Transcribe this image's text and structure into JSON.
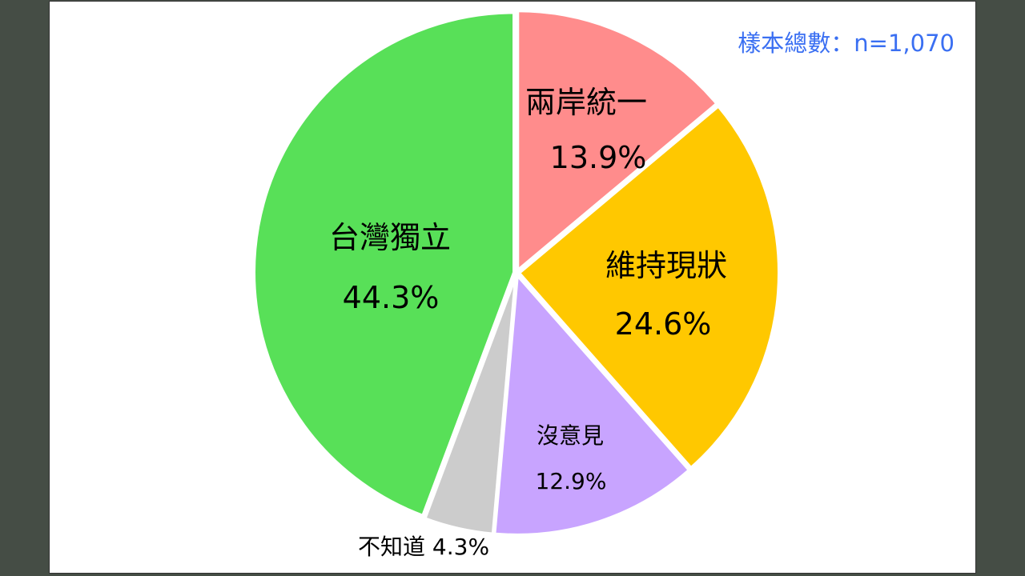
{
  "chart_data": {
    "type": "pie",
    "title": "",
    "start_angle": "12 o'clock, clockwise",
    "slices": [
      {
        "label": "兩岸統一",
        "value": 13.9,
        "value_label": "13.9%",
        "color": "#ff8c8c"
      },
      {
        "label": "維持現狀",
        "value": 24.6,
        "value_label": "24.6%",
        "color": "#ffc800"
      },
      {
        "label": "沒意見",
        "value": 12.9,
        "value_label": "12.9%",
        "color": "#c8a4ff"
      },
      {
        "label": "不知道",
        "value": 4.3,
        "value_label": "4.3%",
        "color": "#cccccc"
      },
      {
        "label": "台灣獨立",
        "value": 44.3,
        "value_label": "44.3%",
        "color": "#58e058"
      }
    ],
    "annotation": "樣本總數：n=1,070"
  },
  "colors": {
    "background": "#454d45",
    "annotation": "#3a6ff2"
  }
}
